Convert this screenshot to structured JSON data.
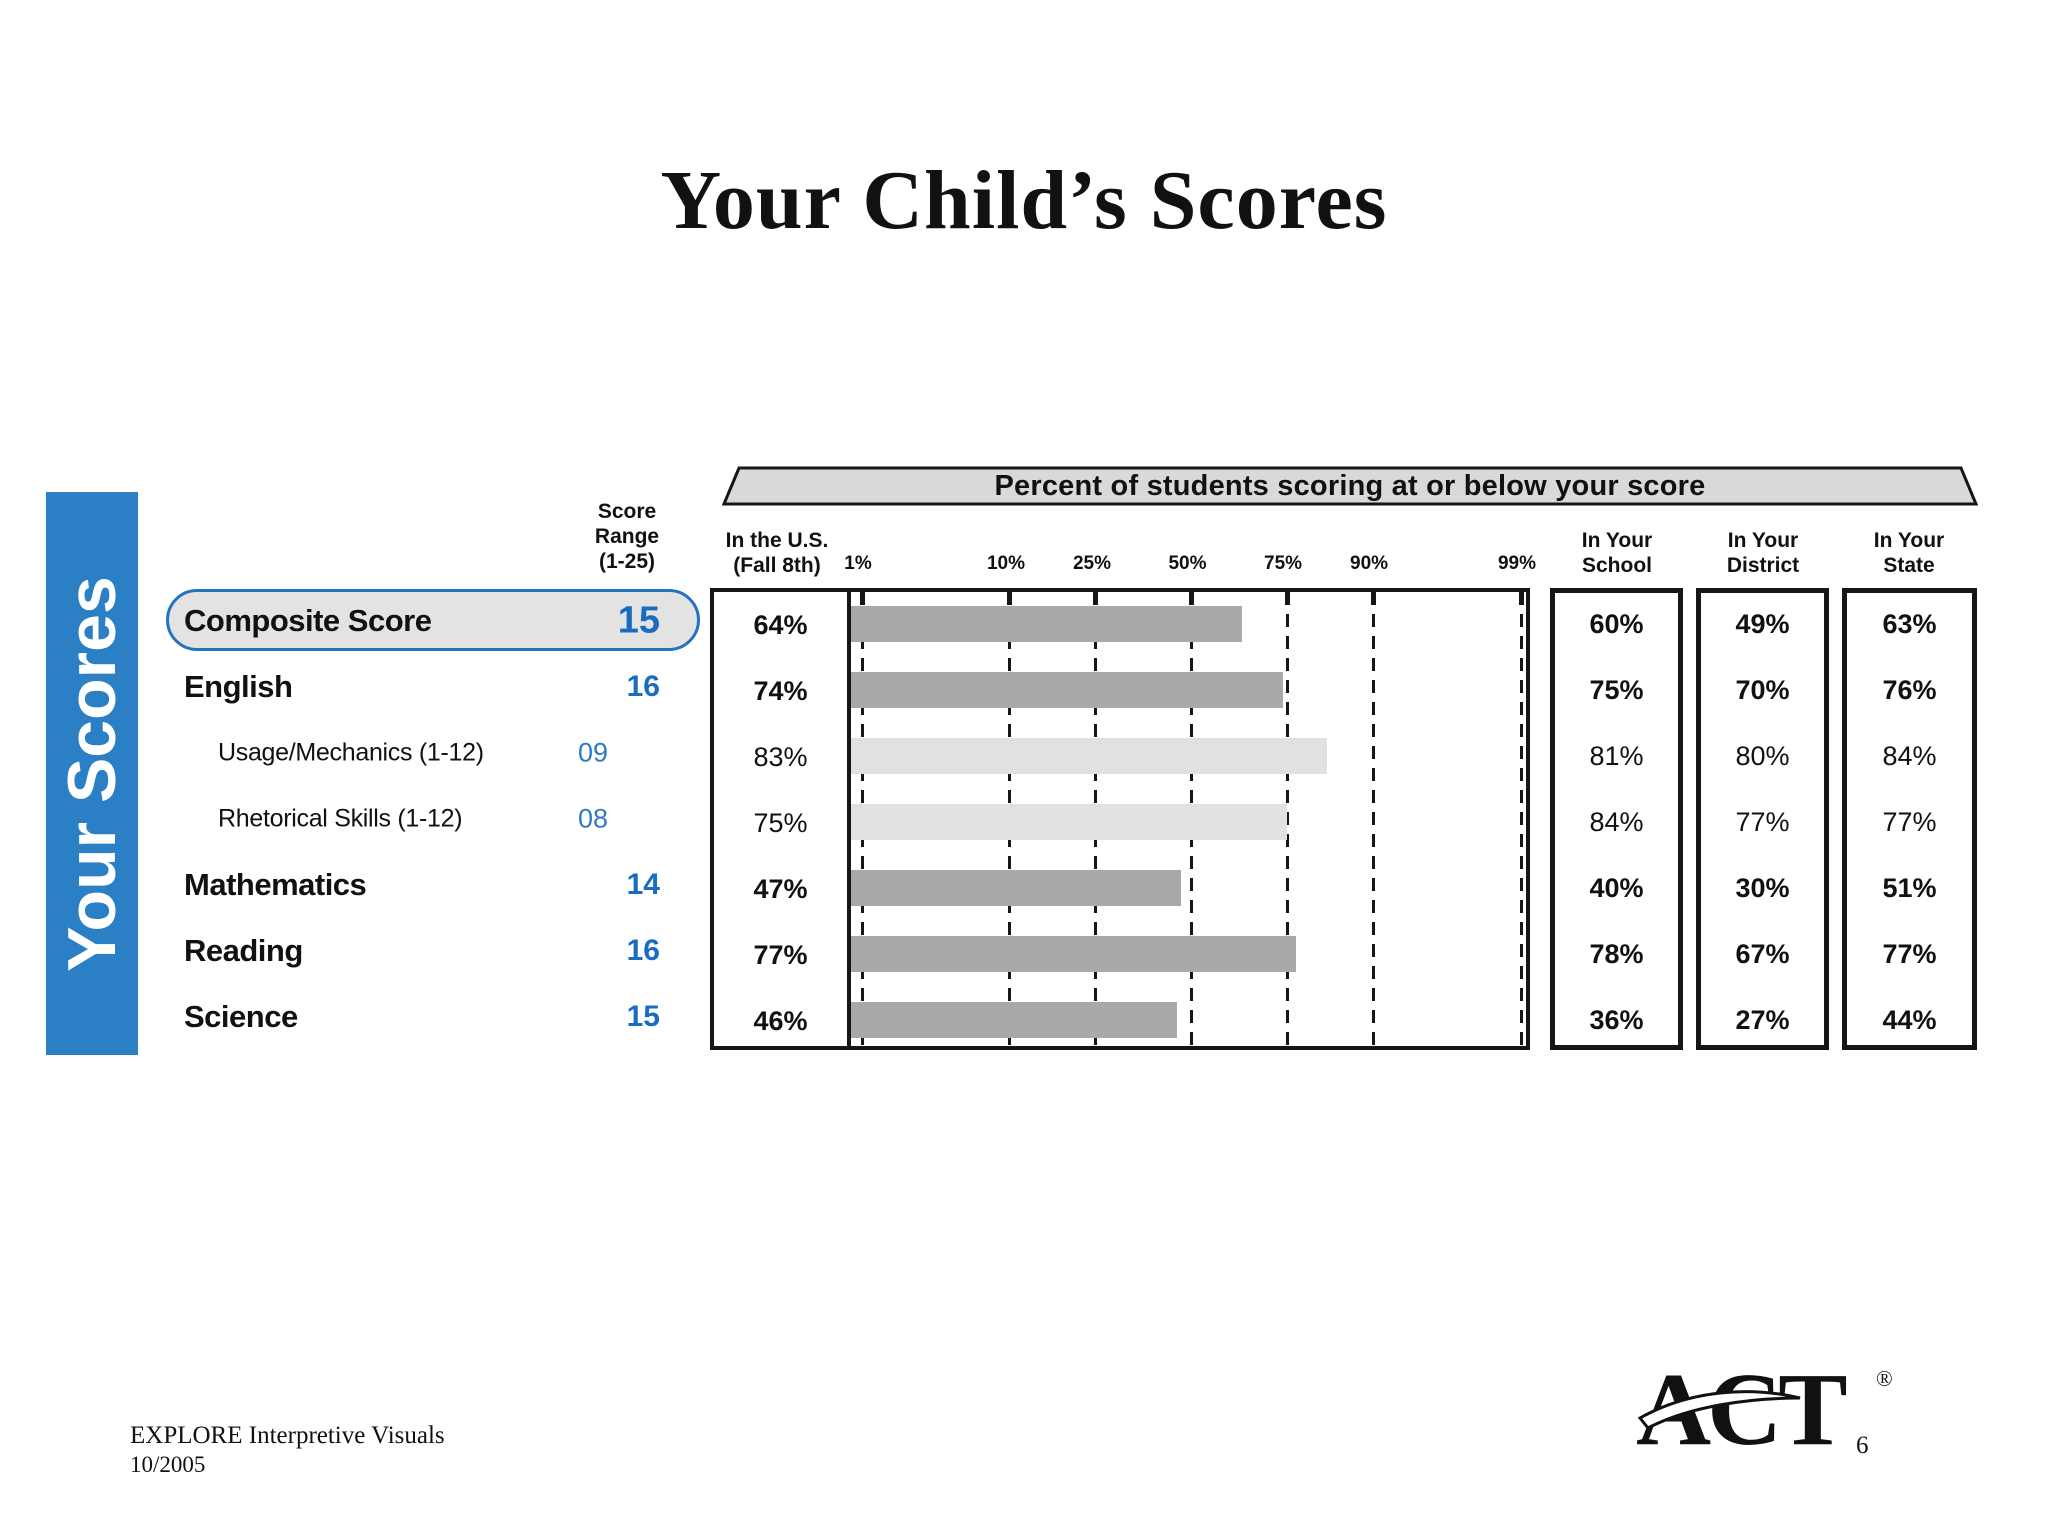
{
  "slide": {
    "title": "Your Child’s Scores",
    "footer": {
      "line1": "EXPLORE Interpretive Visuals",
      "line2": "10/2005",
      "page_number": "6"
    },
    "logo": {
      "text": "ACT",
      "registered": "®"
    }
  },
  "sidebar": {
    "label": "Your Scores"
  },
  "colors": {
    "sidebar_blue": "#2b7fc4",
    "score_blue": "#1a6cc0",
    "subscore_blue": "#3279c4",
    "highlight_border_blue": "#2273c2",
    "highlight_fill": "#e3e3e3",
    "banner_fill": "#d9d9d9",
    "bar_dark": "#a9a9a9",
    "bar_light": "#e1e1e1",
    "ink": "#161616"
  },
  "score_column": {
    "header_lines": [
      "Score",
      "Range",
      "(1-25)"
    ]
  },
  "column_headers": {
    "us": [
      "In the U.S.",
      "(Fall 8th)"
    ],
    "school": [
      "In Your",
      "School"
    ],
    "district": [
      "In Your",
      "District"
    ],
    "state": [
      "In Your",
      "State"
    ]
  },
  "chart_data": {
    "type": "bar",
    "orientation": "horizontal",
    "title": "Percent of students scoring at or below your score",
    "x_axis": {
      "scale": "normal-percentile-probit",
      "tick_percents": [
        1,
        10,
        25,
        50,
        75,
        90,
        99
      ],
      "tick_labels": [
        "1%",
        "10%",
        "25%",
        "50%",
        "75%",
        "90%",
        "99%"
      ],
      "gridlines": "dashed-vertical"
    },
    "bars_depict": "In the U.S. (Fall 8th) percentile",
    "categories": [
      "Composite Score",
      "English",
      "Usage/Mechanics (1-12)",
      "Rhetorical Skills (1-12)",
      "Mathematics",
      "Reading",
      "Science"
    ],
    "rows": [
      {
        "label": "Composite Score",
        "score": "15",
        "us": 64,
        "school": 60,
        "district": 49,
        "state": 63,
        "subscore": false,
        "highlighted": true,
        "bar_style": "dark"
      },
      {
        "label": "English",
        "score": "16",
        "us": 74,
        "school": 75,
        "district": 70,
        "state": 76,
        "subscore": false,
        "highlighted": false,
        "bar_style": "dark"
      },
      {
        "label": "Usage/Mechanics (1-12)",
        "score": "09",
        "us": 83,
        "school": 81,
        "district": 80,
        "state": 84,
        "subscore": true,
        "highlighted": false,
        "bar_style": "light"
      },
      {
        "label": "Rhetorical Skills (1-12)",
        "score": "08",
        "us": 75,
        "school": 84,
        "district": 77,
        "state": 77,
        "subscore": true,
        "highlighted": false,
        "bar_style": "light"
      },
      {
        "label": "Mathematics",
        "score": "14",
        "us": 47,
        "school": 40,
        "district": 30,
        "state": 51,
        "subscore": false,
        "highlighted": false,
        "bar_style": "dark"
      },
      {
        "label": "Reading",
        "score": "16",
        "us": 77,
        "school": 78,
        "district": 67,
        "state": 77,
        "subscore": false,
        "highlighted": false,
        "bar_style": "dark"
      },
      {
        "label": "Science",
        "score": "15",
        "us": 46,
        "school": 36,
        "district": 27,
        "state": 44,
        "subscore": false,
        "highlighted": false,
        "bar_style": "dark"
      }
    ],
    "series": [
      {
        "name": "In the U.S. (Fall 8th)",
        "values": [
          64,
          74,
          83,
          75,
          47,
          77,
          46
        ]
      },
      {
        "name": "In Your School",
        "values": [
          60,
          75,
          81,
          84,
          40,
          78,
          36
        ]
      },
      {
        "name": "In Your District",
        "values": [
          49,
          70,
          80,
          77,
          30,
          67,
          27
        ]
      },
      {
        "name": "In Your State",
        "values": [
          63,
          76,
          84,
          77,
          51,
          77,
          44
        ]
      }
    ]
  }
}
